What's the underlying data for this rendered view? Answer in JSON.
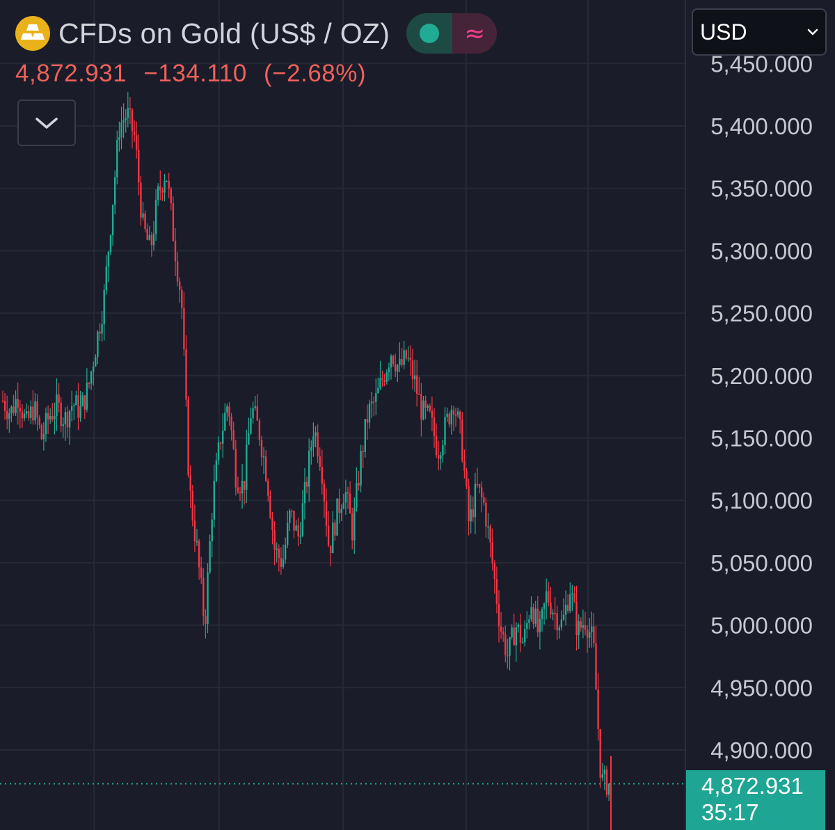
{
  "header": {
    "title": "CFDs on Gold (US$ / OZ)",
    "status_icon": "market-open-dot",
    "indicator_icon": "approximately-equal-icon",
    "last_price": "4,872.931",
    "change": "−134.110",
    "change_percent": "(−2.68%)"
  },
  "currency": {
    "selected": "USD"
  },
  "price_tag": {
    "price": "4,872.931",
    "countdown": "35:17"
  },
  "colors": {
    "background": "#1a1d29",
    "up": "#22ab94",
    "down": "#f23645",
    "change_text": "#f0605a",
    "gold_logo": "#e9b21a"
  },
  "chart_data": {
    "type": "candlestick",
    "title": "CFDs on Gold (US$ / OZ)",
    "ylim": [
      4820,
      5470
    ],
    "ytick_labels": [
      "5,450.000",
      "5,400.000",
      "5,350.000",
      "5,300.000",
      "5,250.000",
      "5,200.000",
      "5,150.000",
      "5,100.000",
      "5,050.000",
      "5,000.000",
      "4,950.000",
      "4,900.000"
    ],
    "ytick_values": [
      5450,
      5400,
      5350,
      5300,
      5250,
      5200,
      5150,
      5100,
      5050,
      5000,
      4950,
      4900
    ],
    "grid": true,
    "last_price": 4872.931,
    "close_path_anchors": [
      5180,
      5170,
      5185,
      5160,
      5175,
      5150,
      5168,
      5175,
      5165,
      5178,
      5172,
      5190,
      5225,
      5260,
      5330,
      5400,
      5410,
      5390,
      5320,
      5300,
      5345,
      5365,
      5310,
      5260,
      5110,
      5060,
      5000,
      5100,
      5150,
      5180,
      5120,
      5110,
      5175,
      5155,
      5120,
      5060,
      5050,
      5090,
      5070,
      5110,
      5160,
      5130,
      5060,
      5090,
      5110,
      5075,
      5130,
      5170,
      5180,
      5200,
      5220,
      5205,
      5215,
      5195,
      5170,
      5165,
      5140,
      5160,
      5180,
      5150,
      5080,
      5110,
      5095,
      5050,
      5000,
      4975,
      5000,
      4985,
      5020,
      4990,
      5025,
      5010,
      5000,
      5030,
      4995,
      5005,
      4985,
      4875,
      4872.931
    ]
  }
}
